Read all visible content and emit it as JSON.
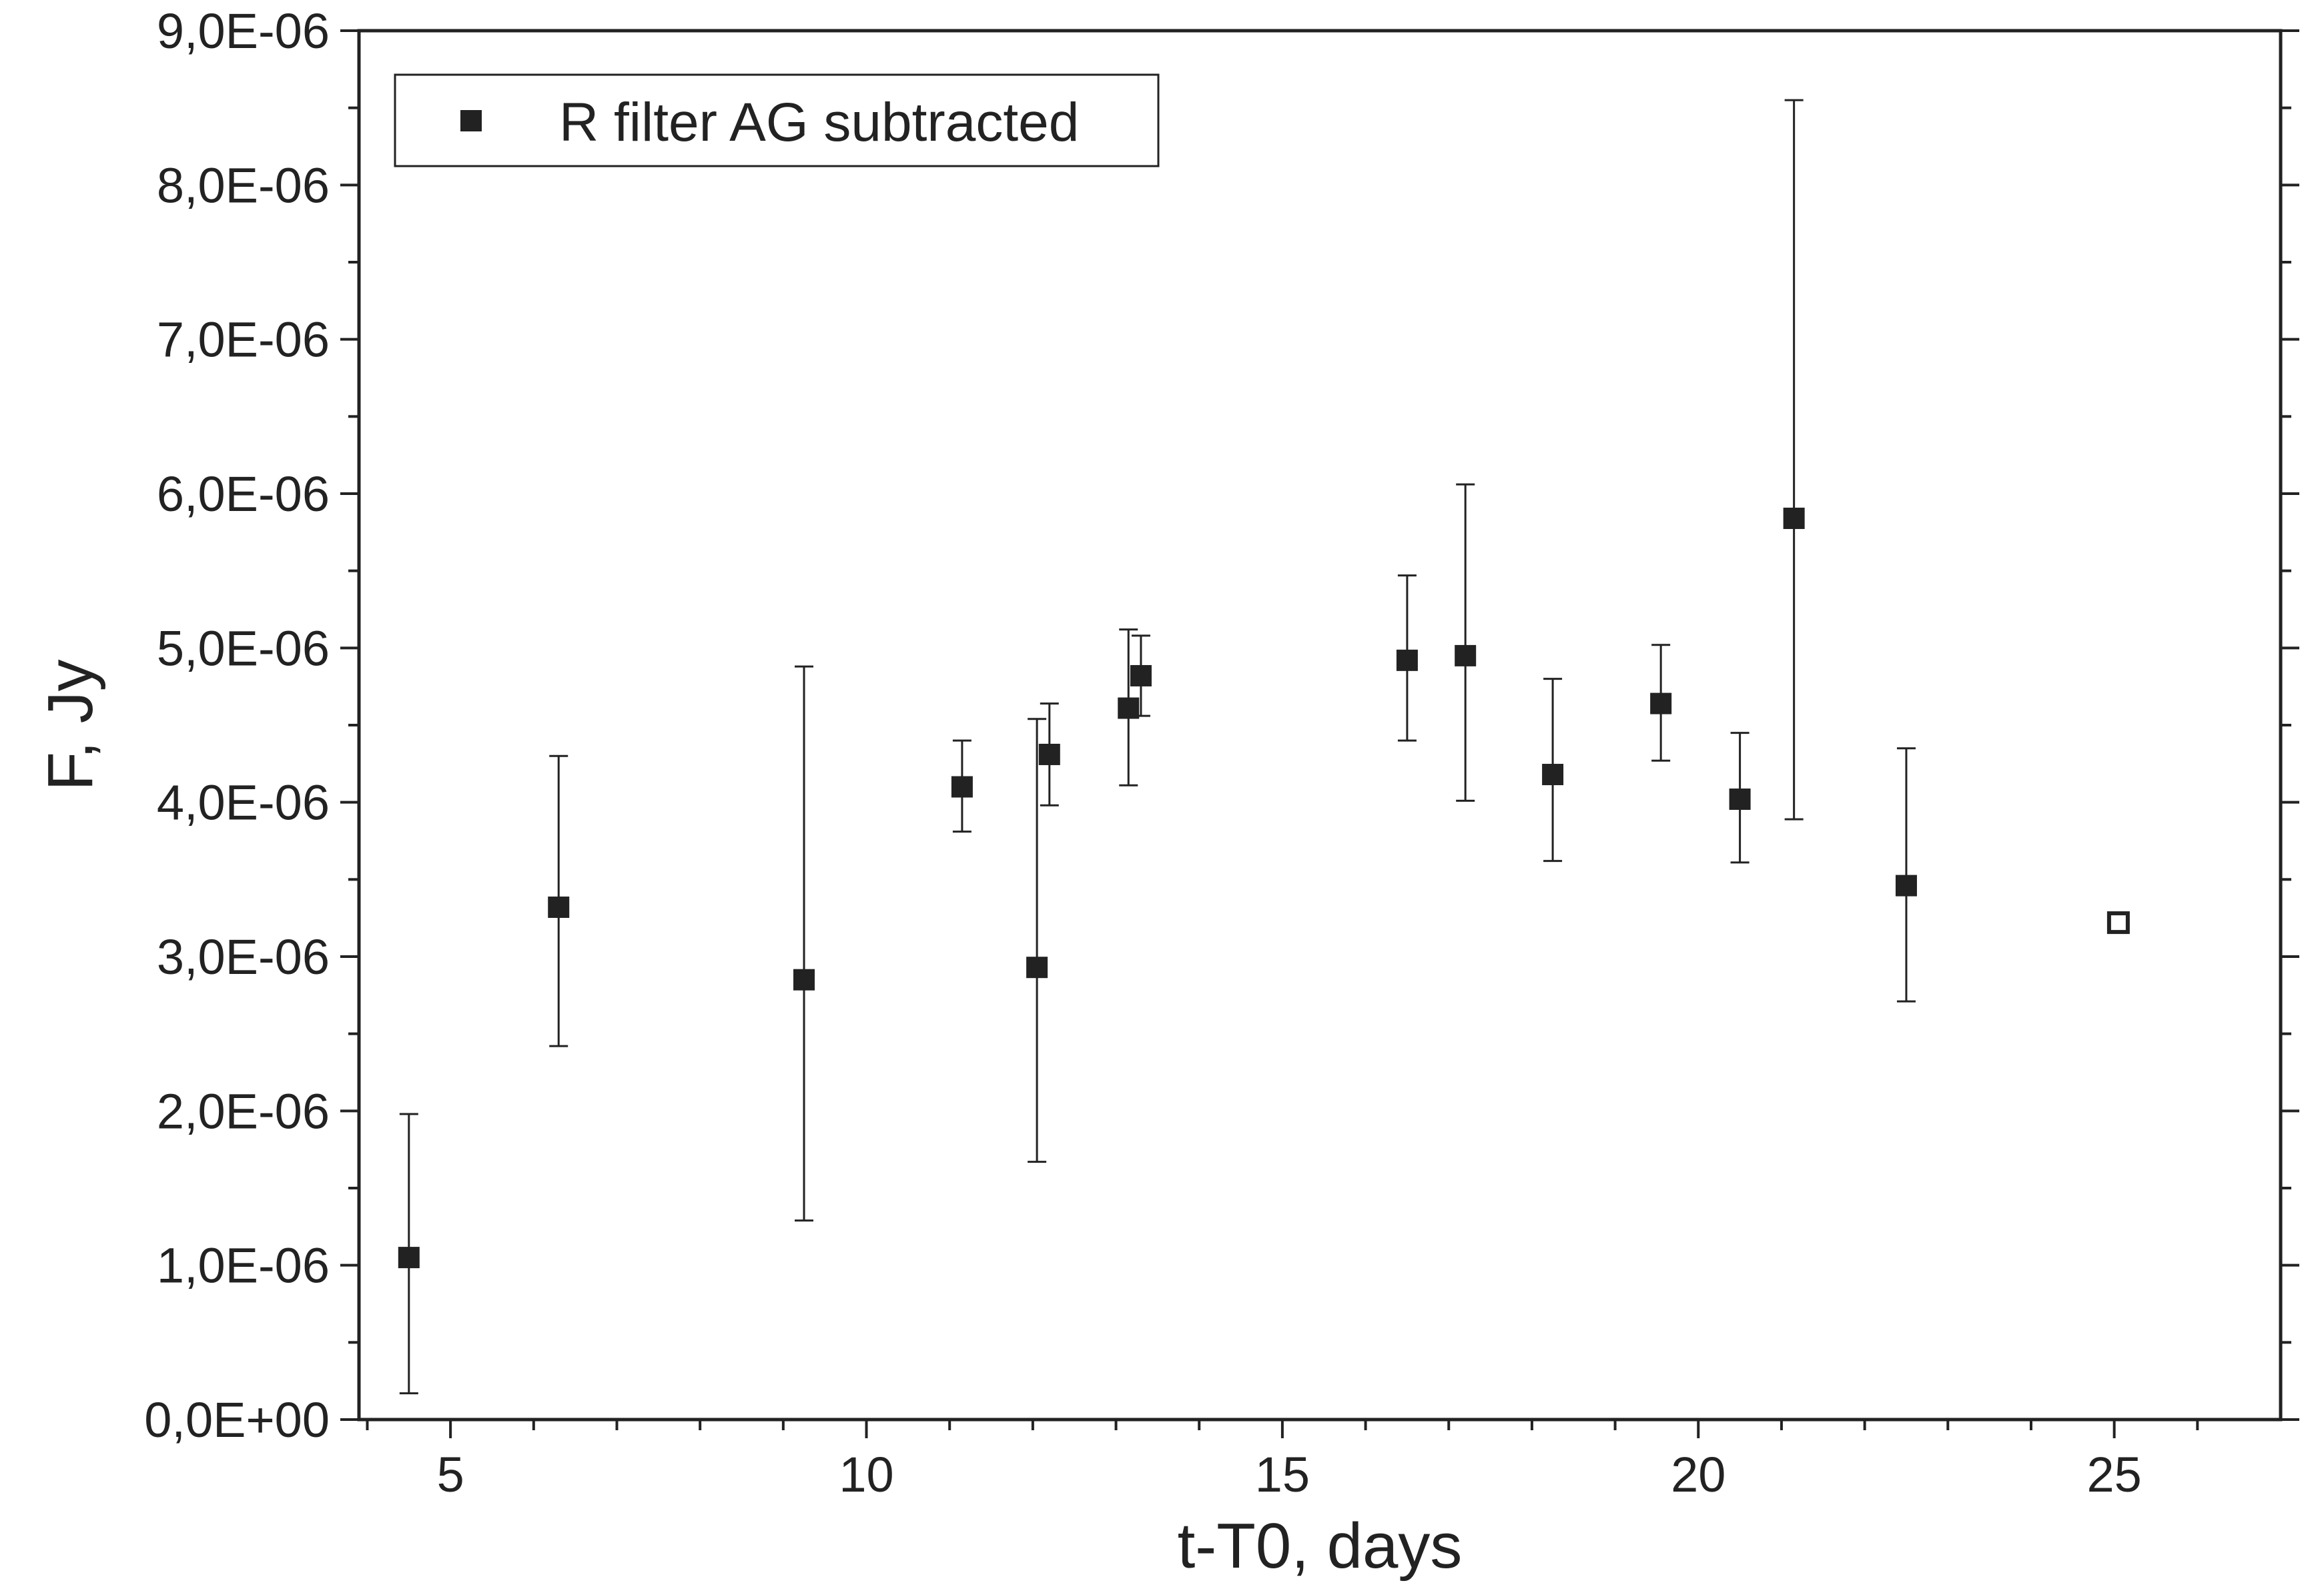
{
  "chart_data": {
    "type": "scatter",
    "title": "",
    "xlabel": "t-T0, days",
    "ylabel": "F, Jy",
    "xlim": [
      3.9,
      27.0
    ],
    "ylim": [
      0,
      9e-06
    ],
    "x_ticks": [
      5,
      10,
      15,
      20,
      25
    ],
    "x_tick_labels": [
      "5",
      "10",
      "15",
      "20",
      "25"
    ],
    "y_ticks": [
      0,
      1e-06,
      2e-06,
      3e-06,
      4e-06,
      5e-06,
      6e-06,
      7e-06,
      8e-06,
      9e-06
    ],
    "y_tick_labels": [
      "0,0E+00",
      "1,0E-06",
      "2,0E-06",
      "3,0E-06",
      "4,0E-06",
      "5,0E-06",
      "6,0E-06",
      "7,0E-06",
      "8,0E-06",
      "9,0E-06"
    ],
    "grid": false,
    "legend_position": "top-left",
    "series": [
      {
        "name": "R filter AG subtracted",
        "marker": "filled-square",
        "color": "#222222",
        "points": [
          {
            "x": 4.5,
            "y": 1.05e-06,
            "y_low": 1.7e-07,
            "y_high": 1.98e-06
          },
          {
            "x": 6.3,
            "y": 3.32e-06,
            "y_low": 2.42e-06,
            "y_high": 4.3e-06
          },
          {
            "x": 9.25,
            "y": 2.85e-06,
            "y_low": 1.29e-06,
            "y_high": 4.88e-06
          },
          {
            "x": 11.15,
            "y": 4.1e-06,
            "y_low": 3.81e-06,
            "y_high": 4.4e-06
          },
          {
            "x": 12.05,
            "y": 2.93e-06,
            "y_low": 1.67e-06,
            "y_high": 4.54e-06
          },
          {
            "x": 12.2,
            "y": 4.31e-06,
            "y_low": 3.98e-06,
            "y_high": 4.64e-06
          },
          {
            "x": 13.15,
            "y": 4.61e-06,
            "y_low": 4.11e-06,
            "y_high": 5.12e-06
          },
          {
            "x": 13.3,
            "y": 4.82e-06,
            "y_low": 4.56e-06,
            "y_high": 5.08e-06
          },
          {
            "x": 16.5,
            "y": 4.92e-06,
            "y_low": 4.4e-06,
            "y_high": 5.47e-06
          },
          {
            "x": 17.2,
            "y": 4.95e-06,
            "y_low": 4.01e-06,
            "y_high": 6.06e-06
          },
          {
            "x": 18.25,
            "y": 4.18e-06,
            "y_low": 3.62e-06,
            "y_high": 4.8e-06
          },
          {
            "x": 19.55,
            "y": 4.64e-06,
            "y_low": 4.27e-06,
            "y_high": 5.02e-06
          },
          {
            "x": 20.5,
            "y": 4.02e-06,
            "y_low": 3.61e-06,
            "y_high": 4.45e-06
          },
          {
            "x": 21.15,
            "y": 5.84e-06,
            "y_low": 3.89e-06,
            "y_high": 8.55e-06
          },
          {
            "x": 22.5,
            "y": 3.46e-06,
            "y_low": 2.71e-06,
            "y_high": 4.35e-06
          }
        ]
      },
      {
        "marker": "open-square",
        "color": "#222222",
        "points": [
          {
            "x": 25.05,
            "y": 3.22e-06
          }
        ]
      }
    ]
  }
}
